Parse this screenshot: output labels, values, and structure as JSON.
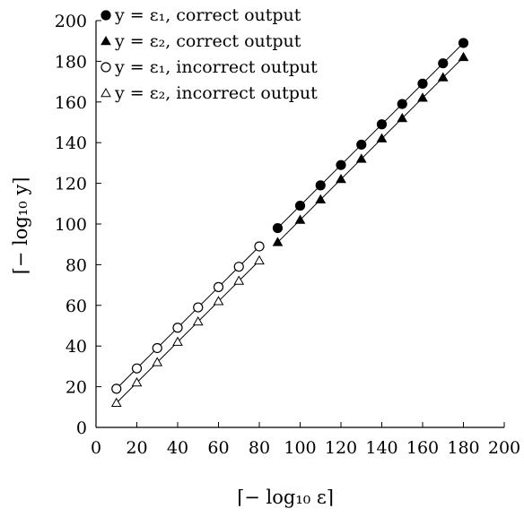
{
  "chart_data": {
    "type": "scatter",
    "xlabel": "⌈− log₁₀ ε⌉",
    "ylabel": "⌈− log₁₀ y⌉",
    "xlim": [
      0,
      200
    ],
    "ylim": [
      0,
      200
    ],
    "xticks": [
      0,
      20,
      40,
      60,
      80,
      100,
      120,
      140,
      160,
      180,
      200
    ],
    "yticks": [
      0,
      20,
      40,
      60,
      80,
      100,
      120,
      140,
      160,
      180,
      200
    ],
    "grid": false,
    "legend_position": "top-left",
    "series": [
      {
        "name": "y = ε₁, correct output",
        "marker": "filled-circle",
        "x": [
          89,
          100,
          110,
          120,
          130,
          140,
          150,
          160,
          170,
          180
        ],
        "y": [
          98,
          109,
          119,
          129,
          139,
          149,
          159,
          169,
          179,
          189
        ]
      },
      {
        "name": "y = ε₂, correct output",
        "marker": "filled-triangle",
        "x": [
          89,
          100,
          110,
          120,
          130,
          140,
          150,
          160,
          170,
          180
        ],
        "y": [
          91,
          102,
          112,
          122,
          132,
          142,
          152,
          162,
          172,
          182
        ]
      },
      {
        "name": "y = ε₁, incorrect output",
        "marker": "open-circle",
        "x": [
          10,
          20,
          30,
          40,
          50,
          60,
          70,
          80
        ],
        "y": [
          19,
          29,
          39,
          49,
          59,
          69,
          79,
          89
        ]
      },
      {
        "name": "y = ε₂, incorrect output",
        "marker": "open-triangle",
        "x": [
          10,
          20,
          30,
          40,
          50,
          60,
          70,
          80
        ],
        "y": [
          12,
          22,
          32,
          42,
          52,
          62,
          72,
          82
        ]
      }
    ],
    "fit_lines": [
      {
        "x": [
          10,
          80
        ],
        "y": [
          19,
          89
        ]
      },
      {
        "x": [
          10,
          80
        ],
        "y": [
          12,
          82
        ]
      },
      {
        "x": [
          89,
          180
        ],
        "y": [
          98,
          189
        ]
      },
      {
        "x": [
          89,
          180
        ],
        "y": [
          91,
          182
        ]
      }
    ]
  }
}
